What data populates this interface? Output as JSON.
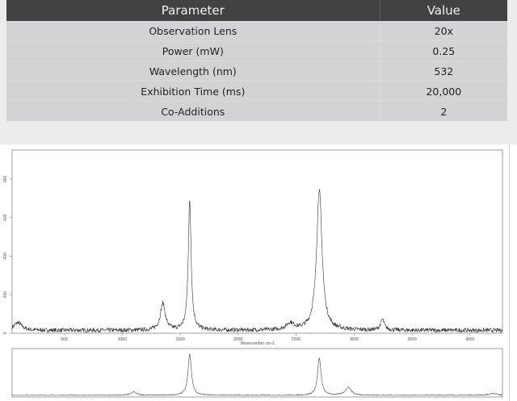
{
  "table": {
    "headers": [
      "Parameter",
      "Value"
    ],
    "rows": [
      [
        "Observation Lens",
        "20x"
      ],
      [
        "Power (mW)",
        "0.25"
      ],
      [
        "Wavelength (nm)",
        "532"
      ],
      [
        "Exhibition Time (ms)",
        "20,000"
      ],
      [
        "Co-Additions",
        "2"
      ]
    ]
  },
  "chart_data": [
    {
      "type": "line",
      "xlabel": "Wavenumber cm-1",
      "ylabel": "",
      "xlim": [
        50,
        4280
      ],
      "ylim": [
        0,
        950
      ],
      "xticks": [
        "500",
        "1000",
        "1500",
        "2000",
        "2500",
        "3000",
        "3500",
        "4000"
      ],
      "yticks": [
        "0",
        "200",
        "400",
        "600",
        "800"
      ],
      "baseline": 15,
      "peaks": [
        {
          "x": 100,
          "y": 40,
          "width": 40
        },
        {
          "x": 1350,
          "y": 140,
          "width": 25
        },
        {
          "x": 1582,
          "y": 670,
          "width": 15
        },
        {
          "x": 2450,
          "y": 35,
          "width": 40
        },
        {
          "x": 2700,
          "y": 730,
          "width": 28
        },
        {
          "x": 3245,
          "y": 55,
          "width": 20
        }
      ],
      "grid": false
    },
    {
      "type": "line",
      "xlim": [
        50,
        4280
      ],
      "peaks": [
        {
          "x": 1100,
          "y": 8,
          "width": 30
        },
        {
          "x": 1582,
          "y": 100,
          "width": 18
        },
        {
          "x": 2700,
          "y": 90,
          "width": 18
        },
        {
          "x": 2950,
          "y": 20,
          "width": 30
        },
        {
          "x": 4200,
          "y": 5,
          "width": 40
        }
      ],
      "grid": false
    }
  ]
}
